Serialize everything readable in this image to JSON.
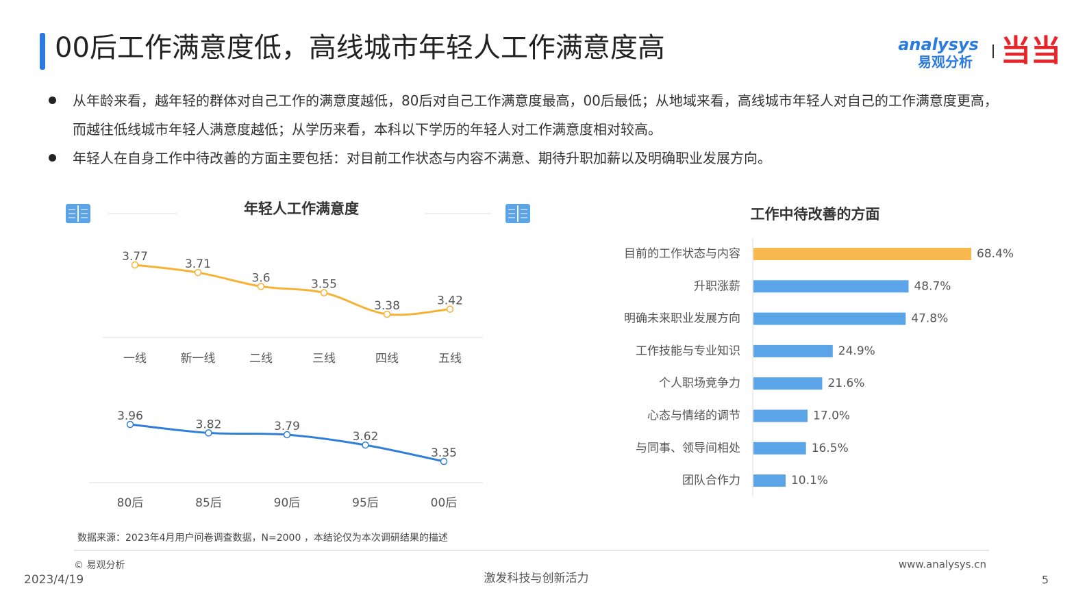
{
  "title": "00后工作满意度低，高线城市年轻人工作满意度高",
  "logo": {
    "brand": "analysys",
    "brand_cn": "易观分析",
    "partner": "当当"
  },
  "bullets": [
    "从年龄来看，越年轻的群体对自己工作的满意度越低，80后对自己工作满意度最高，00后最低；从地域来看，高线城市年轻人对自己的工作满意度更高，而越往低线城市年轻人满意度越低；从学历来看，本科以下学历的年轻人对工作满意度相对较高。",
    "年轻人在自身工作中待改善的方面主要包括：对目前工作状态与内容不满意、期待升职加薪以及明确职业发展方向。"
  ],
  "chart_data": [
    {
      "type": "line",
      "title": "年轻人工作满意度",
      "categories": [
        "一线",
        "新一线",
        "二线",
        "三线",
        "四线",
        "五线"
      ],
      "values": [
        3.77,
        3.71,
        3.6,
        3.55,
        3.38,
        3.42
      ],
      "color": "#f5b335"
    },
    {
      "type": "line",
      "categories": [
        "80后",
        "85后",
        "90后",
        "95后",
        "00后"
      ],
      "values": [
        3.96,
        3.82,
        3.79,
        3.62,
        3.35
      ],
      "color": "#2f7ed8"
    },
    {
      "type": "bar",
      "orientation": "horizontal",
      "title": "工作中待改善的方面",
      "categories": [
        "目前的工作状态与内容",
        "升职涨薪",
        "明确未来职业发展方向",
        "工作技能与专业知识",
        "个人职场竞争力",
        "心态与情绪的调节",
        "与同事、领导间相处",
        "团队合作力"
      ],
      "values": [
        68.4,
        48.7,
        47.8,
        24.9,
        21.6,
        17.0,
        16.5,
        10.1
      ],
      "value_labels": [
        "68.4%",
        "48.7%",
        "47.8%",
        "24.9%",
        "21.6%",
        "17.0%",
        "16.5%",
        "10.1%"
      ],
      "colors": [
        "#f7b84f",
        "#5ca4e8",
        "#5ca4e8",
        "#5ca4e8",
        "#5ca4e8",
        "#5ca4e8",
        "#5ca4e8",
        "#5ca4e8"
      ]
    }
  ],
  "source": "数据来源：2023年4月用户问卷调查数据，N=2000 ，本结论仅为本次调研结果的描述",
  "copyright": "© 易观分析",
  "date": "2023/4/19",
  "slogan": "激发科技与创新活力",
  "url": "www.analysys.cn",
  "page": "5"
}
